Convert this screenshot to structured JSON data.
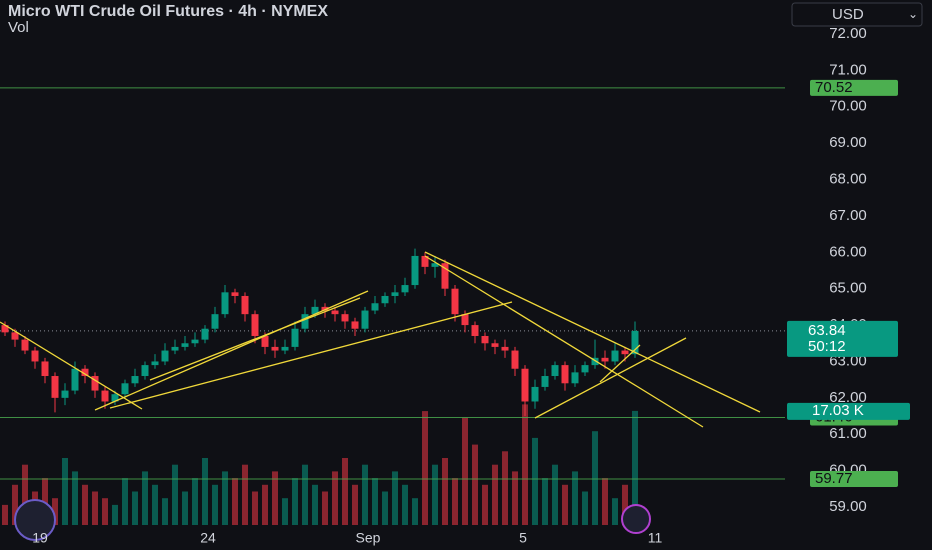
{
  "chart_data": {
    "type": "candlestick",
    "title": "Micro WTI Crude Oil Futures · 4h · NYMEX",
    "subtitle": "Vol",
    "currency": "USD",
    "up_color": "#089981",
    "down_color": "#f23645",
    "open": [
      64.0,
      63.8,
      63.6,
      63.3,
      63.0,
      62.6,
      62.0,
      62.2,
      62.8,
      62.6,
      62.2,
      61.9,
      62.1,
      62.4,
      62.6,
      62.9,
      63.0,
      63.3,
      63.4,
      63.5,
      63.6,
      63.9,
      64.3,
      64.9,
      64.8,
      64.3,
      63.7,
      63.4,
      63.3,
      63.4,
      63.9,
      64.3,
      64.5,
      64.4,
      64.3,
      64.1,
      63.9,
      64.4,
      64.6,
      64.8,
      64.9,
      65.1,
      65.9,
      65.6,
      65.7,
      65.0,
      64.3,
      64.0,
      63.7,
      63.5,
      63.4,
      63.3,
      62.8,
      61.9,
      62.3,
      62.6,
      62.9,
      62.4,
      62.7,
      62.9,
      63.1,
      63.0,
      63.3,
      63.2
    ],
    "high": [
      64.1,
      63.9,
      63.7,
      63.4,
      63.1,
      62.7,
      62.4,
      63.0,
      62.9,
      62.7,
      62.3,
      62.2,
      62.5,
      62.8,
      63.0,
      63.2,
      63.5,
      63.6,
      63.7,
      63.8,
      64.0,
      64.5,
      65.1,
      65.0,
      64.9,
      64.4,
      63.8,
      63.6,
      63.6,
      64.1,
      64.5,
      64.7,
      64.6,
      64.5,
      64.4,
      64.2,
      64.5,
      64.8,
      64.9,
      65.1,
      65.3,
      66.1,
      66.0,
      65.9,
      65.8,
      65.1,
      64.4,
      64.1,
      63.8,
      63.6,
      63.6,
      63.4,
      62.9,
      62.5,
      62.8,
      63.0,
      63.0,
      62.9,
      63.0,
      63.6,
      63.3,
      63.5,
      63.4,
      64.1
    ],
    "low": [
      63.7,
      63.4,
      63.2,
      62.8,
      62.4,
      61.6,
      61.8,
      62.1,
      62.4,
      62.0,
      61.7,
      61.8,
      62.0,
      62.3,
      62.5,
      62.8,
      62.9,
      63.2,
      63.3,
      63.4,
      63.5,
      63.8,
      64.2,
      64.6,
      64.1,
      63.5,
      63.2,
      63.1,
      63.2,
      63.3,
      63.8,
      64.2,
      64.2,
      64.1,
      63.9,
      63.7,
      63.8,
      64.3,
      64.5,
      64.6,
      64.8,
      65.0,
      65.4,
      65.3,
      64.8,
      64.1,
      63.8,
      63.5,
      63.3,
      63.2,
      63.1,
      62.6,
      61.5,
      61.7,
      62.2,
      62.5,
      62.2,
      62.3,
      62.6,
      62.8,
      62.8,
      62.9,
      63.0,
      63.1
    ],
    "close": [
      63.8,
      63.6,
      63.3,
      63.0,
      62.6,
      62.0,
      62.2,
      62.8,
      62.6,
      62.2,
      61.9,
      62.1,
      62.4,
      62.6,
      62.9,
      63.0,
      63.3,
      63.4,
      63.5,
      63.6,
      63.9,
      64.3,
      64.9,
      64.8,
      64.3,
      63.7,
      63.4,
      63.3,
      63.4,
      63.9,
      64.3,
      64.5,
      64.4,
      64.3,
      64.1,
      63.9,
      64.4,
      64.6,
      64.8,
      64.9,
      65.1,
      65.9,
      65.6,
      65.7,
      65.0,
      64.3,
      64.0,
      63.7,
      63.5,
      63.4,
      63.3,
      62.8,
      61.9,
      62.3,
      62.6,
      62.9,
      62.4,
      62.7,
      62.9,
      63.1,
      63.0,
      63.3,
      63.2,
      63.84
    ],
    "volume": [
      3,
      6,
      9,
      5,
      7,
      4,
      10,
      8,
      6,
      5,
      4,
      3,
      7,
      5,
      8,
      6,
      4,
      9,
      5,
      7,
      10,
      6,
      8,
      7,
      9,
      5,
      6,
      8,
      4,
      7,
      9,
      6,
      5,
      8,
      10,
      6,
      9,
      7,
      5,
      8,
      6,
      4,
      17,
      9,
      10,
      7,
      16,
      12,
      6,
      9,
      11,
      8,
      18,
      13,
      7,
      9,
      6,
      8,
      5,
      14,
      7,
      4,
      6,
      17.03
    ],
    "last_volume_label": "17.03 K",
    "countdown": "50:12",
    "levels": [
      70.52,
      61.46,
      59.77
    ],
    "xlim": [
      -0.5,
      78
    ],
    "xticks": [
      {
        "value": 3.5,
        "label": "19"
      },
      {
        "value": 20.3,
        "label": "24"
      },
      {
        "value": 36.3,
        "label": "Sep"
      },
      {
        "value": 51.8,
        "label": "5"
      },
      {
        "value": 65,
        "label": "11"
      }
    ],
    "ylim": [
      59,
      72
    ],
    "yticks": [
      {
        "value": 72,
        "label": "72.00"
      },
      {
        "value": 71,
        "label": "71.00"
      },
      {
        "value": 70,
        "label": "70.00"
      },
      {
        "value": 69,
        "label": "69.00"
      },
      {
        "value": 68,
        "label": "68.00"
      },
      {
        "value": 67,
        "label": "67.00"
      },
      {
        "value": 66,
        "label": "66.00"
      },
      {
        "value": 65,
        "label": "65.00"
      },
      {
        "value": 64,
        "label": "64.00"
      },
      {
        "value": 63,
        "label": "63.00"
      },
      {
        "value": 62,
        "label": "62.00"
      },
      {
        "value": 61,
        "label": "61.00"
      },
      {
        "value": 60,
        "label": "60.00"
      },
      {
        "value": 59,
        "label": "59.00"
      }
    ],
    "y2lim": [
      0,
      40
    ],
    "grid": true
  }
}
